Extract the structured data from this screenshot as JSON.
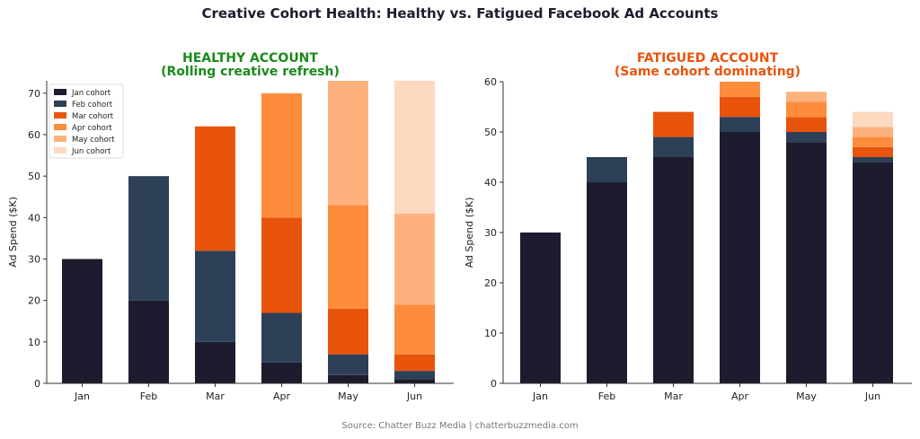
{
  "title": "Creative Cohort Health: Healthy vs. Fatigued Facebook Ad Accounts",
  "source": "Source: Chatter Buzz Media | chatterbuzzmedia.com",
  "chart_data": [
    {
      "type": "bar",
      "stacked": true,
      "title": "HEALTHY ACCOUNT",
      "subtitle": "(Rolling creative refresh)",
      "title_color": "#1a8a1a",
      "ylabel": "Ad Spend ($K)",
      "xlabel": "",
      "ylim": [
        0,
        73
      ],
      "yticks": [
        0,
        10,
        20,
        30,
        40,
        50,
        60,
        70
      ],
      "categories": [
        "Jan",
        "Feb",
        "Mar",
        "Apr",
        "May",
        "Jun"
      ],
      "legend": "top-left",
      "series": [
        {
          "name": "Jan cohort",
          "color": "#1c1c2e",
          "values": [
            30,
            20,
            10,
            5,
            2,
            1
          ]
        },
        {
          "name": "Feb cohort",
          "color": "#2e4057",
          "values": [
            0,
            30,
            22,
            12,
            5,
            2
          ]
        },
        {
          "name": "Mar cohort",
          "color": "#e8540c",
          "values": [
            0,
            0,
            30,
            23,
            11,
            4
          ]
        },
        {
          "name": "Apr cohort",
          "color": "#fd8c3d",
          "values": [
            0,
            0,
            0,
            30,
            25,
            12
          ]
        },
        {
          "name": "May cohort",
          "color": "#fdb27e",
          "values": [
            0,
            0,
            0,
            0,
            30,
            22
          ]
        },
        {
          "name": "Jun cohort",
          "color": "#fdd9c0",
          "values": [
            0,
            0,
            0,
            0,
            0,
            32
          ]
        }
      ]
    },
    {
      "type": "bar",
      "stacked": true,
      "title": "FATIGUED ACCOUNT",
      "subtitle": "(Same cohort dominating)",
      "title_color": "#e8540c",
      "ylabel": "Ad Spend ($K)",
      "xlabel": "",
      "ylim": [
        0,
        60
      ],
      "yticks": [
        0,
        10,
        20,
        30,
        40,
        50,
        60
      ],
      "categories": [
        "Jan",
        "Feb",
        "Mar",
        "Apr",
        "May",
        "Jun"
      ],
      "series": [
        {
          "color": "#1c1c2e",
          "values": [
            30,
            40,
            45,
            50,
            48,
            44
          ]
        },
        {
          "color": "#2e4057",
          "values": [
            0,
            5,
            4,
            3,
            2,
            1
          ]
        },
        {
          "color": "#e8540c",
          "values": [
            0,
            0,
            5,
            4,
            3,
            2
          ]
        },
        {
          "color": "#fd8c3d",
          "values": [
            0,
            0,
            0,
            3,
            3,
            2
          ]
        },
        {
          "color": "#fdb27e",
          "values": [
            0,
            0,
            0,
            0,
            2,
            2
          ]
        },
        {
          "color": "#fdd9c0",
          "values": [
            0,
            0,
            0,
            0,
            0,
            3
          ]
        }
      ]
    }
  ]
}
